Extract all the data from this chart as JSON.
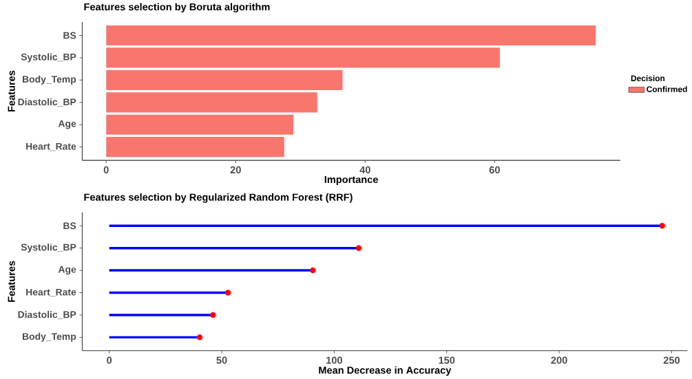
{
  "chart_data": [
    {
      "type": "bar",
      "orientation": "horizontal",
      "title": "Features selection by Boruta algorithm",
      "xlabel": "Importance",
      "ylabel": "Features",
      "legend_title": "Decision",
      "legend": "right",
      "categories": [
        "BS",
        "Systolic_BP",
        "Body_Temp",
        "Diastolic_BP",
        "Age",
        "Heart_Rate"
      ],
      "series": [
        {
          "name": "Confirmed",
          "color": "#f8766d",
          "values": [
            75.6,
            60.8,
            36.5,
            32.6,
            28.9,
            27.5
          ]
        }
      ],
      "xlim": [
        -3.7,
        79.4
      ],
      "xticks": [
        0,
        20,
        40,
        60
      ],
      "grid": false
    },
    {
      "type": "lollipop",
      "orientation": "horizontal",
      "title": "Features selection by Regularized Random Forest (RRF)",
      "xlabel": "Mean Decrease in Accuracy",
      "ylabel": "Features",
      "categories": [
        "BS",
        "Systolic_BP",
        "Age",
        "Heart_Rate",
        "Diastolic_BP",
        "Body_Temp"
      ],
      "values": [
        245.8,
        110.9,
        90.5,
        52.8,
        46.1,
        40.2
      ],
      "color": "#0000ff",
      "colors": [
        "#ff0000",
        "#ff0000",
        "#ff0000",
        "#ff0000",
        "#ff0000",
        "#ff0000"
      ],
      "marker": "circle",
      "xlim": [
        -12,
        257
      ],
      "xticks": [
        0,
        50,
        100,
        150,
        200,
        250
      ],
      "grid": false
    }
  ]
}
